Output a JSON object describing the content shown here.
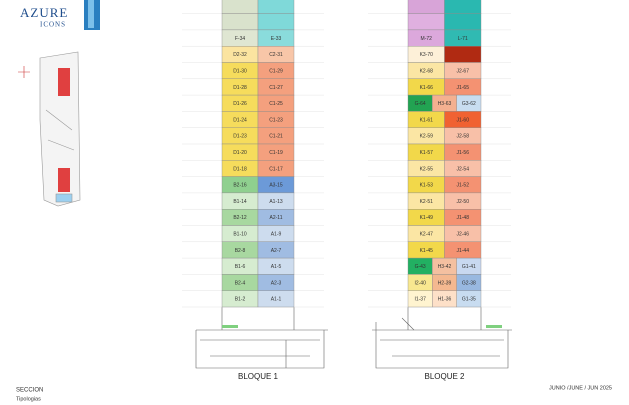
{
  "logo": {
    "line1": "AZURE",
    "line2": "ICONS"
  },
  "blocks": [
    {
      "label": "BLOQUE 1",
      "floors": [
        {
          "units": [
            {
              "color": "#d9e2cc"
            },
            {
              "color": "#7fd9d9"
            }
          ]
        },
        {
          "units": [
            {
              "color": "#d9e2cc"
            },
            {
              "color": "#7fd9d9"
            }
          ]
        },
        {
          "units": [
            {
              "label": "F-34",
              "color": "#dfe6d2"
            },
            {
              "label": "E-33",
              "color": "#8adcdc"
            }
          ]
        },
        {
          "units": [
            {
              "label": "D2-32",
              "color": "#fbe4a0"
            },
            {
              "label": "C2-31",
              "color": "#f8c6a8"
            }
          ]
        },
        {
          "units": [
            {
              "label": "D1-30",
              "color": "#f6dc5c"
            },
            {
              "label": "C1-29",
              "color": "#f4a07e"
            }
          ]
        },
        {
          "units": [
            {
              "label": "D1-28",
              "color": "#f6dc5c"
            },
            {
              "label": "C1-27",
              "color": "#f4a07e"
            }
          ]
        },
        {
          "units": [
            {
              "label": "D1-26",
              "color": "#f6dc5c"
            },
            {
              "label": "C1-25",
              "color": "#f4a07e"
            }
          ]
        },
        {
          "units": [
            {
              "label": "D1-24",
              "color": "#f6dc5c"
            },
            {
              "label": "C1-23",
              "color": "#f4a07e"
            }
          ]
        },
        {
          "units": [
            {
              "label": "D1-23",
              "color": "#f6dc5c"
            },
            {
              "label": "C1-21",
              "color": "#f4a07e"
            }
          ]
        },
        {
          "units": [
            {
              "label": "D1-20",
              "color": "#f6dc5c"
            },
            {
              "label": "C1-19",
              "color": "#f4a07e"
            }
          ]
        },
        {
          "units": [
            {
              "label": "D1-18",
              "color": "#f6dc5c"
            },
            {
              "label": "C1-17",
              "color": "#f4a07e"
            }
          ]
        },
        {
          "units": [
            {
              "label": "B2-16",
              "color": "#8fd08f"
            },
            {
              "label": "A3-15",
              "color": "#6c9ad8"
            }
          ]
        },
        {
          "units": [
            {
              "label": "B1-14",
              "color": "#d6ecd0"
            },
            {
              "label": "A1-13",
              "color": "#cddcee"
            }
          ]
        },
        {
          "units": [
            {
              "label": "B2-12",
              "color": "#a8d8a0"
            },
            {
              "label": "A2-11",
              "color": "#a0bce2"
            }
          ]
        },
        {
          "units": [
            {
              "label": "B1-10",
              "color": "#d6ecd0"
            },
            {
              "label": "A1-9",
              "color": "#cddcee"
            }
          ]
        },
        {
          "units": [
            {
              "label": "B2-8",
              "color": "#a8d8a0"
            },
            {
              "label": "A2-7",
              "color": "#a0bce2"
            }
          ]
        },
        {
          "units": [
            {
              "label": "B1-6",
              "color": "#d6ecd0"
            },
            {
              "label": "A1-5",
              "color": "#cddcee"
            }
          ]
        },
        {
          "units": [
            {
              "label": "B2-4",
              "color": "#a8d8a0"
            },
            {
              "label": "A2-3",
              "color": "#a0bce2"
            }
          ]
        },
        {
          "units": [
            {
              "label": "B1-2",
              "color": "#d6ecd0"
            },
            {
              "label": "A1-1",
              "color": "#cddcee"
            }
          ]
        }
      ]
    },
    {
      "label": "BLOQUE 2",
      "floors": [
        {
          "units": [
            {
              "color": "#d8a4d8"
            },
            {
              "color": "#2ab8b0"
            }
          ]
        },
        {
          "units": [
            {
              "color": "#e0b0e0"
            },
            {
              "color": "#2ab8b0"
            }
          ]
        },
        {
          "units": [
            {
              "label": "M-72",
              "color": "#dca8dc"
            },
            {
              "label": "L-71",
              "color": "#30bab2"
            }
          ]
        },
        {
          "units": [
            {
              "label": "K3-70",
              "color": "#fdf0d8"
            },
            {
              "color": "#b02a12"
            }
          ]
        },
        {
          "units": [
            {
              "label": "K2-68",
              "color": "#fbe6a4"
            },
            {
              "label": "J2-67",
              "color": "#f8c0a8"
            }
          ]
        },
        {
          "units": [
            {
              "label": "K1-66",
              "color": "#f2d84a"
            },
            {
              "label": "J1-65",
              "color": "#f49272"
            }
          ]
        },
        {
          "units": [
            {
              "label": "G-64",
              "color": "#22a352"
            },
            {
              "label": "H3-63",
              "color": "#f4b090"
            },
            {
              "label": "G3-62",
              "color": "#c8ddf0"
            }
          ]
        },
        {
          "units": [
            {
              "label": "K1-61",
              "color": "#f2d84a"
            },
            {
              "label": "J1-60",
              "color": "#f06232"
            }
          ]
        },
        {
          "units": [
            {
              "label": "K2-59",
              "color": "#fbe6a4"
            },
            {
              "label": "J2-58",
              "color": "#f8c0a8"
            }
          ]
        },
        {
          "units": [
            {
              "label": "K1-57",
              "color": "#f2d84a"
            },
            {
              "label": "J1-56",
              "color": "#f49272"
            }
          ]
        },
        {
          "units": [
            {
              "label": "K2-55",
              "color": "#fbe6a4"
            },
            {
              "label": "J2-54",
              "color": "#f8c0a8"
            }
          ]
        },
        {
          "units": [
            {
              "label": "K1-53",
              "color": "#f2d84a"
            },
            {
              "label": "J1-52",
              "color": "#f49272"
            }
          ]
        },
        {
          "units": [
            {
              "label": "K2-51",
              "color": "#fbe6a4"
            },
            {
              "label": "J2-50",
              "color": "#f8c0a8"
            }
          ]
        },
        {
          "units": [
            {
              "label": "K1-49",
              "color": "#f2d84a"
            },
            {
              "label": "J1-48",
              "color": "#f49272"
            }
          ]
        },
        {
          "units": [
            {
              "label": "K2-47",
              "color": "#fbe6a4"
            },
            {
              "label": "J2-46",
              "color": "#f8c0a8"
            }
          ]
        },
        {
          "units": [
            {
              "label": "K1-45",
              "color": "#f2d84a"
            },
            {
              "label": "J1-44",
              "color": "#f49272"
            }
          ]
        },
        {
          "units": [
            {
              "label": "G-43",
              "color": "#22b062"
            },
            {
              "label": "H3-42",
              "color": "#f4c0a0"
            },
            {
              "label": "G1-41",
              "color": "#c8d8f0"
            }
          ]
        },
        {
          "units": [
            {
              "label": "I2-40",
              "color": "#f8e890"
            },
            {
              "label": "H2-39",
              "color": "#f4b890"
            },
            {
              "label": "G2-38",
              "color": "#98b8e0"
            }
          ]
        },
        {
          "units": [
            {
              "label": "I1-37",
              "color": "#fff4d0"
            },
            {
              "label": "H1-36",
              "color": "#fde0c8"
            },
            {
              "label": "G1-35",
              "color": "#c8dcf0"
            }
          ]
        }
      ]
    }
  ],
  "footer": {
    "section": "SECCION",
    "subtitle": "Tipologias",
    "date": "JUNIO /JUNE / JUN  2025"
  }
}
